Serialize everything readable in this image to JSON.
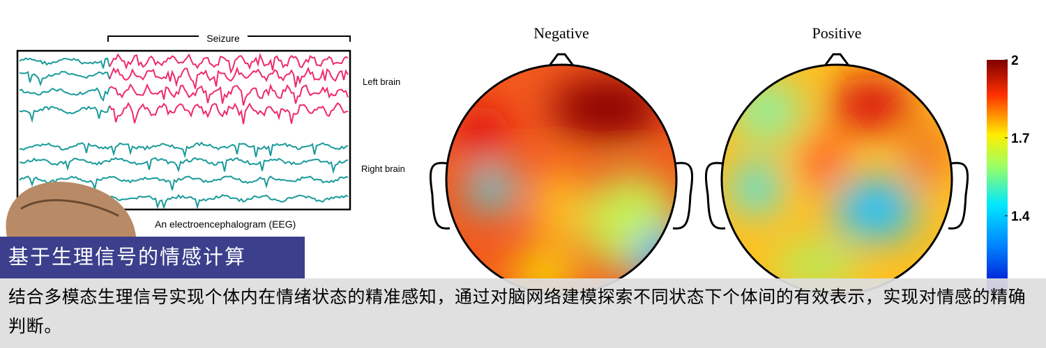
{
  "eeg": {
    "bracket_label": "Seizure",
    "left_label": "Left brain",
    "right_label": "Right brain",
    "caption": "An electroencephalogram (EEG)"
  },
  "topomaps": {
    "titles": [
      "Negative",
      "Positive"
    ]
  },
  "colorbar": {
    "lim": [
      1.1,
      2
    ],
    "ticks": [
      2,
      1.7,
      1.4
    ]
  },
  "banner": {
    "title": "基于生理信号的情感计算",
    "text": "结合多模态生理信号实现个体内在情绪状态的精准感知，通过对脑网络建模探索不同状态下个体间的有效表示，实现对情感的精确判断。"
  }
}
